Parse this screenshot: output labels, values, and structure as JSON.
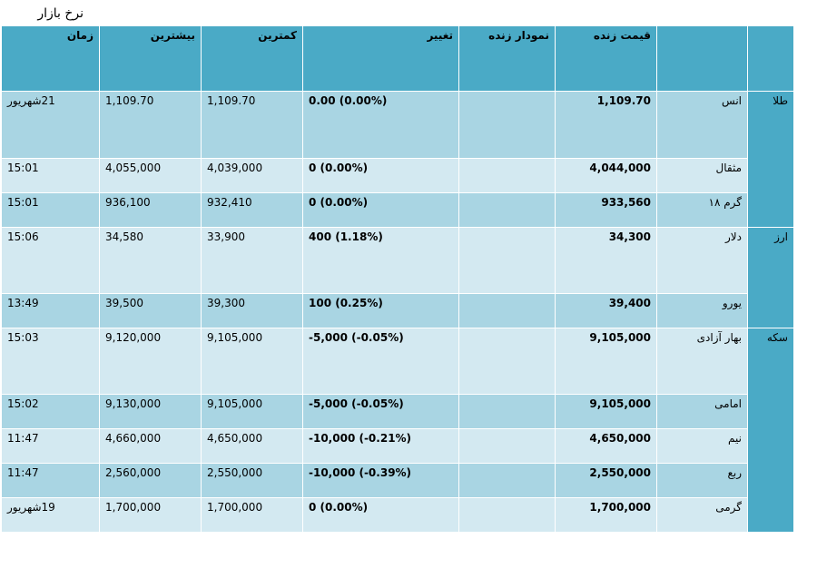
{
  "page_title": "نرخ بازار",
  "headers": {
    "name": "",
    "price": "قیمت زنده",
    "sparkline": "نمودار زنده",
    "change": "تغییر",
    "low": "کمترین",
    "high": "بیشترین",
    "time": "زمان"
  },
  "groups": [
    {
      "label": "طلا",
      "rows": [
        {
          "name": "انس",
          "price": "1,109.70",
          "change": "0.00 (0.00%)",
          "low": "1,109.70",
          "high": "1,109.70",
          "time": "21شهریور"
        },
        {
          "name": "مثقال",
          "price": "4,044,000",
          "change": "0 (0.00%)",
          "low": "4,039,000",
          "high": "4,055,000",
          "time": "15:01"
        },
        {
          "name": "گرم ۱۸",
          "price": "933,560",
          "change": "0 (0.00%)",
          "low": "932,410",
          "high": "936,100",
          "time": "15:01"
        }
      ]
    },
    {
      "label": "ارز",
      "rows": [
        {
          "name": "دلار",
          "price": "34,300",
          "change": "400 (1.18%)",
          "low": "33,900",
          "high": "34,580",
          "time": "15:06"
        },
        {
          "name": "یورو",
          "price": "39,400",
          "change": "100 (0.25%)",
          "low": "39,300",
          "high": "39,500",
          "time": "13:49"
        }
      ]
    },
    {
      "label": "سکه",
      "rows": [
        {
          "name": "بهار آزادی",
          "price": "9,105,000",
          "change": "-5,000 (-0.05%)",
          "low": "9,105,000",
          "high": "9,120,000",
          "time": "15:03"
        },
        {
          "name": "امامی",
          "price": "9,105,000",
          "change": "-5,000 (-0.05%)",
          "low": "9,105,000",
          "high": "9,130,000",
          "time": "15:02"
        },
        {
          "name": "نیم",
          "price": "4,650,000",
          "change": "-10,000 (-0.21%)",
          "low": "4,650,000",
          "high": "4,660,000",
          "time": "11:47"
        },
        {
          "name": "ربع",
          "price": "2,550,000",
          "change": "-10,000 (-0.39%)",
          "low": "2,550,000",
          "high": "2,560,000",
          "time": "11:47"
        },
        {
          "name": "گرمی",
          "price": "1,700,000",
          "change": "0 (0.00%)",
          "low": "1,700,000",
          "high": "1,700,000",
          "time": "19شهریور"
        }
      ]
    }
  ]
}
